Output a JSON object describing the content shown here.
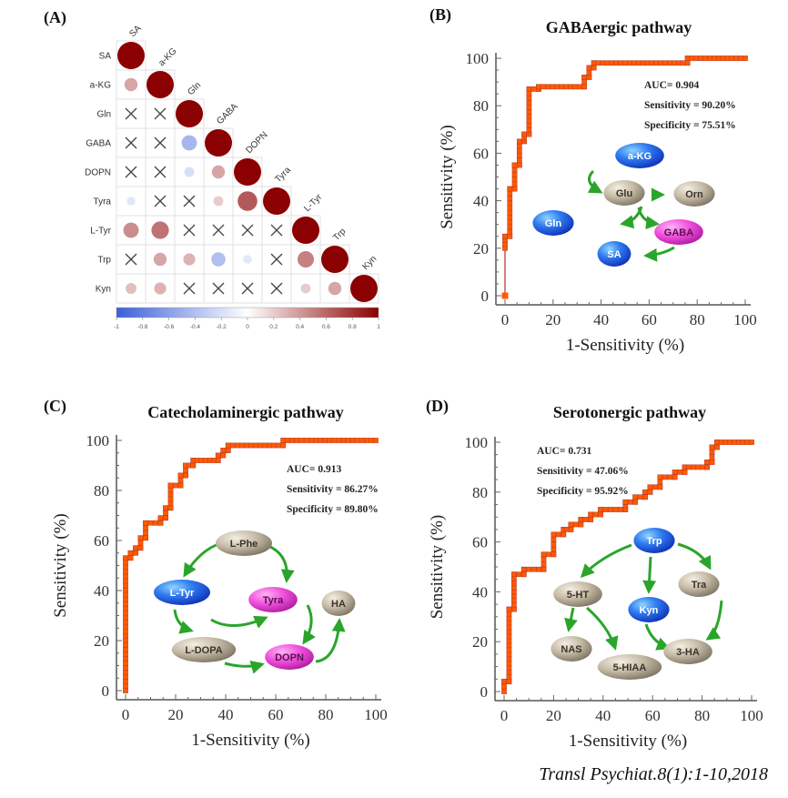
{
  "caption": "Transl Psychiat.8(1):1-10,2018",
  "chart_data": [
    {
      "id": "A",
      "type": "heatmap",
      "panel_label": "(A)",
      "title": "",
      "variables": [
        "SA",
        "a-KG",
        "Gln",
        "GABA",
        "DOPN",
        "Tyra",
        "L-Tyr",
        "Trp",
        "Kyn"
      ],
      "matrix_lower": [
        [
          1
        ],
        [
          0.35,
          1
        ],
        [
          null,
          null,
          1
        ],
        [
          null,
          null,
          -0.45,
          1
        ],
        [
          null,
          null,
          -0.2,
          0.35,
          1
        ],
        [
          -0.15,
          null,
          null,
          0.2,
          0.65,
          1
        ],
        [
          0.45,
          0.55,
          null,
          null,
          null,
          null,
          1
        ],
        [
          null,
          0.35,
          0.3,
          -0.4,
          -0.15,
          null,
          0.5,
          1
        ],
        [
          0.25,
          0.3,
          null,
          null,
          null,
          null,
          0.2,
          0.35,
          1
        ]
      ],
      "nonsignificant_marker": "X",
      "colorbar": {
        "min": -1,
        "max": 1,
        "ticks": [
          "-1",
          "-0.8",
          "-0.6",
          "-0.4",
          "-0.2",
          "0",
          "0.2",
          "0.4",
          "0.6",
          "0.8",
          "1"
        ],
        "low_color": "#3b5fd9",
        "mid_color": "#ffffff",
        "high_color": "#8b0000"
      }
    },
    {
      "id": "B",
      "type": "line",
      "panel_label": "(B)",
      "title": "GABAergic pathway",
      "xlabel": "1-Sensitivity (%)",
      "ylabel": "Sensitivity (%)",
      "xlim": [
        0,
        100
      ],
      "ylim": [
        0,
        100
      ],
      "xticks": [
        "0",
        "20",
        "40",
        "60",
        "80",
        "100"
      ],
      "yticks": [
        "0",
        "20",
        "40",
        "60",
        "80",
        "100"
      ],
      "stats": [
        "AUC= 0.904",
        "Sensitivity = 90.20%",
        "Specificity = 75.51%"
      ],
      "series": [
        {
          "name": "ROC",
          "color": "#ff5a00",
          "points": [
            [
              0,
              0
            ],
            [
              0,
              20
            ],
            [
              0,
              25
            ],
            [
              2,
              25
            ],
            [
              2,
              45
            ],
            [
              4,
              45
            ],
            [
              4,
              55
            ],
            [
              6,
              55
            ],
            [
              6,
              65
            ],
            [
              8,
              65
            ],
            [
              8,
              68
            ],
            [
              10,
              68
            ],
            [
              10,
              87
            ],
            [
              14,
              87
            ],
            [
              14,
              88
            ],
            [
              33,
              88
            ],
            [
              33,
              92
            ],
            [
              35,
              92
            ],
            [
              35,
              96
            ],
            [
              37,
              96
            ],
            [
              37,
              98
            ],
            [
              76,
              98
            ],
            [
              76,
              100
            ],
            [
              100,
              100
            ]
          ]
        }
      ],
      "pathway": {
        "nodes": [
          {
            "label": "a-KG",
            "kind": "blue"
          },
          {
            "label": "Glu",
            "kind": "gray"
          },
          {
            "label": "Orn",
            "kind": "gray"
          },
          {
            "label": "Gln",
            "kind": "blue"
          },
          {
            "label": "GABA",
            "kind": "magenta"
          },
          {
            "label": "SA",
            "kind": "blue"
          }
        ]
      }
    },
    {
      "id": "C",
      "type": "line",
      "panel_label": "(C)",
      "title": "Catecholaminergic pathway",
      "xlabel": "1-Sensitivity (%)",
      "ylabel": "Sensitivity (%)",
      "xlim": [
        0,
        100
      ],
      "ylim": [
        0,
        100
      ],
      "xticks": [
        "0",
        "20",
        "40",
        "60",
        "80",
        "100"
      ],
      "yticks": [
        "0",
        "20",
        "40",
        "60",
        "80",
        "100"
      ],
      "stats": [
        "AUC= 0.913",
        "Sensitivity = 86.27%",
        "Specificity = 89.80%"
      ],
      "series": [
        {
          "name": "ROC",
          "color": "#ff5a00",
          "points": [
            [
              0,
              0
            ],
            [
              0,
              53
            ],
            [
              2,
              53
            ],
            [
              2,
              55
            ],
            [
              4,
              55
            ],
            [
              4,
              57
            ],
            [
              6,
              57
            ],
            [
              6,
              61
            ],
            [
              8,
              61
            ],
            [
              8,
              67
            ],
            [
              14,
              67
            ],
            [
              14,
              69
            ],
            [
              16,
              69
            ],
            [
              16,
              73
            ],
            [
              18,
              73
            ],
            [
              18,
              82
            ],
            [
              22,
              82
            ],
            [
              22,
              86
            ],
            [
              24,
              86
            ],
            [
              24,
              90
            ],
            [
              27,
              90
            ],
            [
              27,
              92
            ],
            [
              37,
              92
            ],
            [
              37,
              94
            ],
            [
              39,
              94
            ],
            [
              39,
              96
            ],
            [
              41,
              96
            ],
            [
              41,
              98
            ],
            [
              63,
              98
            ],
            [
              63,
              100
            ],
            [
              100,
              100
            ]
          ]
        }
      ],
      "pathway": {
        "nodes": [
          {
            "label": "L-Phe",
            "kind": "gray"
          },
          {
            "label": "L-Tyr",
            "kind": "blue"
          },
          {
            "label": "Tyra",
            "kind": "magenta"
          },
          {
            "label": "HA",
            "kind": "gray"
          },
          {
            "label": "L-DOPA",
            "kind": "gray"
          },
          {
            "label": "DOPN",
            "kind": "magenta"
          }
        ]
      }
    },
    {
      "id": "D",
      "type": "line",
      "panel_label": "(D)",
      "title": "Serotonergic pathway",
      "xlabel": "1-Sensitivity (%)",
      "ylabel": "Sensitivity (%)",
      "xlim": [
        0,
        100
      ],
      "ylim": [
        0,
        100
      ],
      "xticks": [
        "0",
        "20",
        "40",
        "60",
        "80",
        "100"
      ],
      "yticks": [
        "0",
        "20",
        "40",
        "60",
        "80",
        "100"
      ],
      "stats": [
        "AUC= 0.731",
        "Sensitivity = 47.06%",
        "Specificity = 95.92%"
      ],
      "series": [
        {
          "name": "ROC",
          "color": "#ff5a00",
          "points": [
            [
              0,
              0
            ],
            [
              0,
              4
            ],
            [
              2,
              4
            ],
            [
              2,
              33
            ],
            [
              4,
              33
            ],
            [
              4,
              47
            ],
            [
              8,
              47
            ],
            [
              8,
              49
            ],
            [
              16,
              49
            ],
            [
              16,
              55
            ],
            [
              20,
              55
            ],
            [
              20,
              63
            ],
            [
              24,
              63
            ],
            [
              24,
              65
            ],
            [
              27,
              65
            ],
            [
              27,
              67
            ],
            [
              31,
              67
            ],
            [
              31,
              69
            ],
            [
              35,
              69
            ],
            [
              35,
              71
            ],
            [
              39,
              71
            ],
            [
              39,
              73
            ],
            [
              49,
              73
            ],
            [
              49,
              76
            ],
            [
              53,
              76
            ],
            [
              53,
              78
            ],
            [
              57,
              78
            ],
            [
              57,
              80
            ],
            [
              59,
              80
            ],
            [
              59,
              82
            ],
            [
              63,
              82
            ],
            [
              63,
              86
            ],
            [
              69,
              86
            ],
            [
              69,
              88
            ],
            [
              73,
              88
            ],
            [
              73,
              90
            ],
            [
              82,
              90
            ],
            [
              82,
              92
            ],
            [
              84,
              92
            ],
            [
              84,
              98
            ],
            [
              86,
              98
            ],
            [
              86,
              100
            ],
            [
              100,
              100
            ]
          ]
        }
      ],
      "pathway": {
        "nodes": [
          {
            "label": "Trp",
            "kind": "blue"
          },
          {
            "label": "5-HT",
            "kind": "gray"
          },
          {
            "label": "Kyn",
            "kind": "blue"
          },
          {
            "label": "Tra",
            "kind": "gray"
          },
          {
            "label": "NAS",
            "kind": "gray"
          },
          {
            "label": "5-HIAA",
            "kind": "gray"
          },
          {
            "label": "3-HA",
            "kind": "gray"
          }
        ]
      }
    }
  ]
}
